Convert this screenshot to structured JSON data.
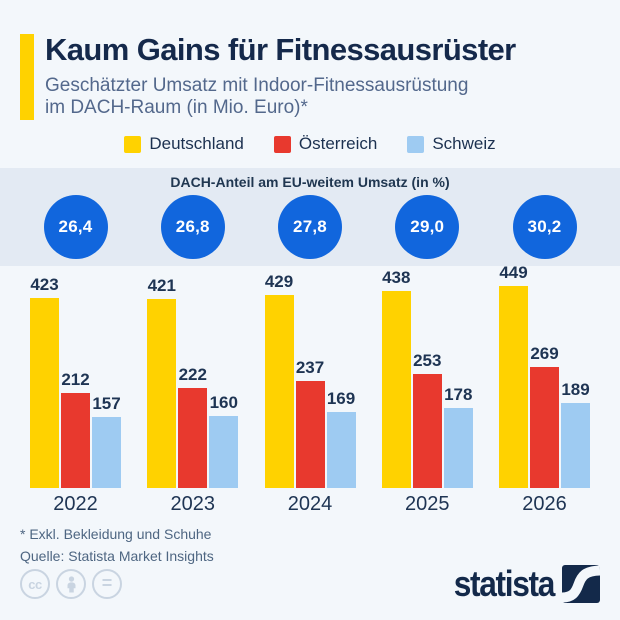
{
  "header": {
    "title": "Kaum Gains für Fitnessausrüster",
    "subtitle_line1": "Geschätzter Umsatz mit Indoor-Fitnessausrüstung",
    "subtitle_line2": "im DACH-Raum (in Mio. Euro)*",
    "accent_color": "#FFD200"
  },
  "legend": [
    {
      "label": "Deutschland",
      "color": "#FFD200"
    },
    {
      "label": "Österreich",
      "color": "#E8392E"
    },
    {
      "label": "Schweiz",
      "color": "#9ECBF2"
    }
  ],
  "share_band": {
    "title": "DACH-Anteil am EU-weitem Umsatz (in %)",
    "values": [
      "26,4",
      "26,8",
      "27,8",
      "29,0",
      "30,2"
    ],
    "circle_color": "#1166DD"
  },
  "chart_data": {
    "type": "bar",
    "title": "Geschätzter Umsatz mit Indoor-Fitnessausrüstung im DACH-Raum (in Mio. Euro)",
    "categories": [
      "2022",
      "2023",
      "2024",
      "2025",
      "2026"
    ],
    "series": [
      {
        "name": "Deutschland",
        "color": "#FFD200",
        "values": [
          423,
          421,
          429,
          438,
          449
        ]
      },
      {
        "name": "Österreich",
        "color": "#E8392E",
        "values": [
          212,
          222,
          237,
          253,
          269
        ]
      },
      {
        "name": "Schweiz",
        "color": "#9ECBF2",
        "values": [
          157,
          160,
          169,
          178,
          189
        ]
      }
    ],
    "secondary_series": {
      "name": "DACH-Anteil am EU-weitem Umsatz (in %)",
      "values": [
        26.4,
        26.8,
        27.8,
        29.0,
        30.2
      ]
    },
    "xlabel": "",
    "ylabel": "",
    "ylim": [
      0,
      460
    ],
    "grid": false,
    "legend_position": "top",
    "value_labels": true
  },
  "footer": {
    "footnote": "* Exkl. Bekleidung und Schuhe",
    "source": "Quelle: Statista Market Insights"
  },
  "branding": {
    "logo_text": "statista",
    "logo_color": "#13294A",
    "cc_icons": [
      "cc",
      "attribution-person",
      "equals"
    ]
  }
}
